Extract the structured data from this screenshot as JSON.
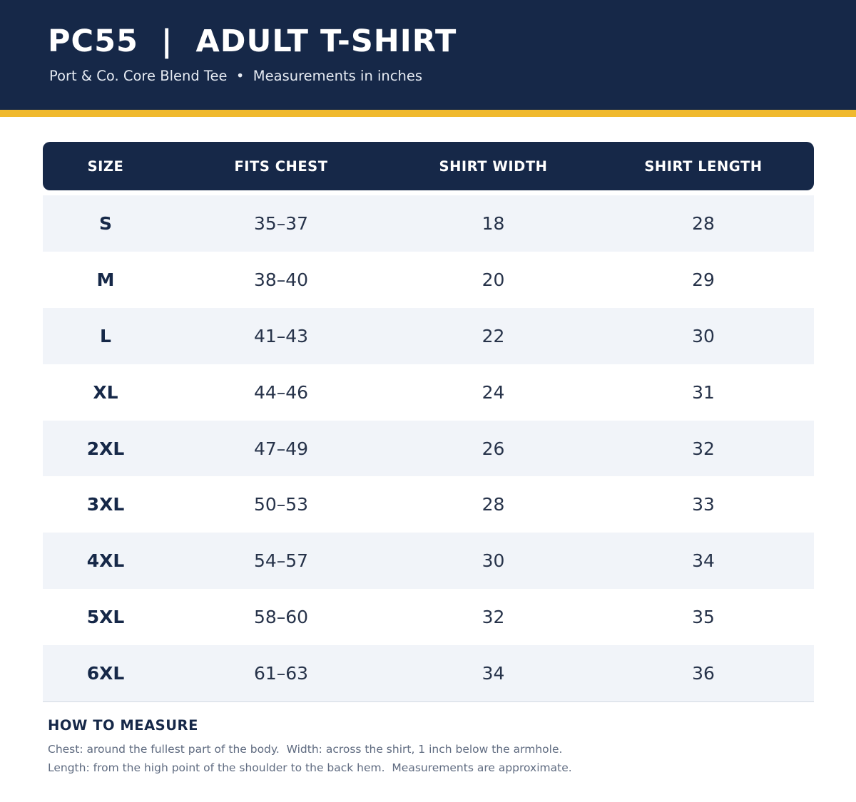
{
  "header": {
    "title": "PC55  |  ADULT T-SHIRT",
    "subtitle": "Port & Co. Core Blend Tee  •  Measurements in inches"
  },
  "colors": {
    "navy": "#162848",
    "accent": "#f0b92e",
    "row_alt": "#f1f4f9"
  },
  "table": {
    "columns": [
      "SIZE",
      "FITS CHEST",
      "SHIRT WIDTH",
      "SHIRT LENGTH"
    ],
    "rows": [
      {
        "size": "S",
        "chest": "35–37",
        "width": "18",
        "length": "28"
      },
      {
        "size": "M",
        "chest": "38–40",
        "width": "20",
        "length": "29"
      },
      {
        "size": "L",
        "chest": "41–43",
        "width": "22",
        "length": "30"
      },
      {
        "size": "XL",
        "chest": "44–46",
        "width": "24",
        "length": "31"
      },
      {
        "size": "2XL",
        "chest": "47–49",
        "width": "26",
        "length": "32"
      },
      {
        "size": "3XL",
        "chest": "50–53",
        "width": "28",
        "length": "33"
      },
      {
        "size": "4XL",
        "chest": "54–57",
        "width": "30",
        "length": "34"
      },
      {
        "size": "5XL",
        "chest": "58–60",
        "width": "32",
        "length": "35"
      },
      {
        "size": "6XL",
        "chest": "61–63",
        "width": "34",
        "length": "36"
      }
    ]
  },
  "measure": {
    "heading": "HOW TO MEASURE",
    "line1": "Chest: around the fullest part of the body.  Width: across the shirt, 1 inch below the armhole.",
    "line2": "Length: from the high point of the shoulder to the back hem.  Measurements are approximate."
  }
}
